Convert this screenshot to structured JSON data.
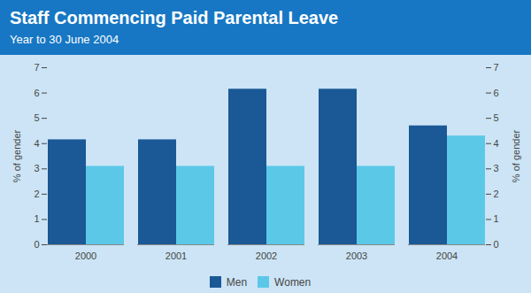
{
  "chart_data": {
    "type": "bar",
    "title": "Staff Commencing Paid Parental Leave",
    "subtitle": "Year to 30 June 2004",
    "categories": [
      "2000",
      "2001",
      "2002",
      "2003",
      "2004"
    ],
    "series": [
      {
        "name": "Men",
        "color": "#1a5896",
        "values": [
          4.15,
          4.15,
          6.15,
          6.15,
          4.7
        ]
      },
      {
        "name": "Women",
        "color": "#5bc8e8",
        "values": [
          3.1,
          3.1,
          3.1,
          3.1,
          4.3
        ]
      }
    ],
    "ylabel": "% of gender",
    "y2label": "% of gender",
    "ylim": [
      0,
      7
    ],
    "yticks": [
      0,
      1,
      2,
      3,
      4,
      5,
      6,
      7
    ],
    "y2lim": [
      0,
      7
    ],
    "y2ticks": [
      0,
      1,
      2,
      3,
      4,
      5,
      6,
      7
    ],
    "grid": false,
    "legend": "bottom"
  }
}
